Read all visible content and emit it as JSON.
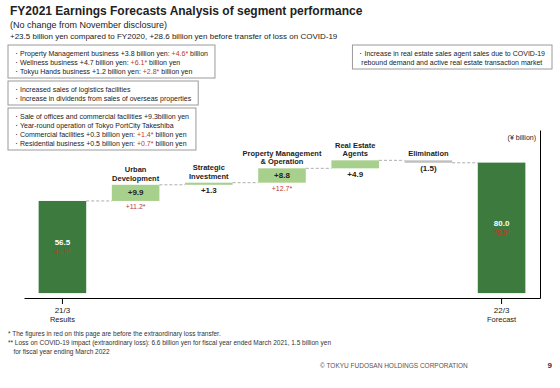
{
  "chart_data": {
    "type": "waterfall",
    "title": "FY2021 Earnings Forecasts Analysis of segment performance",
    "subtitle": "(No change from November disclosure)",
    "subtitle2": "+23.5 billion yen compared to FY2020, +28.6 billion yen before transfer of loss on COVID-19",
    "categories": [
      "21/3",
      "Urban\nDevelopment",
      "Strategic\nInvestment",
      "Property Management\n& Operation",
      "Real Estate\nAgents",
      "Elimination",
      "22/3"
    ],
    "sublabels": [
      "Results",
      null,
      null,
      null,
      null,
      null,
      "Forecast"
    ],
    "values": [
      56.5,
      9.9,
      1.3,
      8.8,
      4.9,
      -1.5,
      80.0
    ],
    "value_labels": [
      "56.5",
      "+9.9",
      "+1.3",
      "+8.8",
      "+4.9",
      "(1.5)",
      "80.0"
    ],
    "red_labels": [
      "49.9*",
      "+11.2*",
      null,
      "+12.7*",
      null,
      null,
      "78.5*"
    ],
    "red_color": "#c0392b",
    "colors": [
      "#3d7a3d",
      "#a8d08d",
      "#a8d08d",
      "#a8d08d",
      "#a8d08d",
      "#c0c0c0",
      "#3d7a3d"
    ],
    "data_labels": true,
    "ylabel": "(¥ billion)",
    "ylim": [
      -3,
      100
    ],
    "yticks": [],
    "tick_labels": "x",
    "annotations": [
      {
        "lines": [
          [
            "・Property Management business +3.8 billion yen: ",
            "+4.6*",
            " billion"
          ],
          [
            "・Wellness business +4.7 billion yen: ",
            "+6.1*",
            " billion yen"
          ],
          [
            "・Tokyu Hands business +1.2 billion yen: ",
            "+2.8*",
            " billion yen"
          ]
        ]
      },
      {
        "lines": [
          [
            "・Increased sales of logistics facilities"
          ],
          [
            "・Increase in dividends from sales of overseas properties"
          ]
        ]
      },
      {
        "lines": [
          [
            "・Sale of offices and commercial facilities +9.3billion yen"
          ],
          [
            "・Year-round operation of Tokyo PortCity Takeshiba"
          ],
          [
            "・Commercial facilities +0.3 billion yen: ",
            "+1.4*",
            " billion yen"
          ],
          [
            "・Residential business +0.5 billion yen: ",
            "+0.7*",
            " billion yen"
          ]
        ]
      },
      {
        "lines": [
          [
            "・Increase in real estate sales agent sales due to COVID-19"
          ],
          [
            "  rebound demand and active real estate transaction market"
          ]
        ]
      }
    ],
    "footer": [
      "* The figures in red on this page are before the extraordinary loss transfer.",
      "** Loss on COVID-19 impact (extraordinary loss): 6.6 billion yen for fiscal year ended March 2021, 1.5 billion yen",
      "   for fiscal year ending March 2022"
    ],
    "company": "© TOKYU FUDOSAN HOLDINGS CORPORATION",
    "page_num": "9"
  }
}
